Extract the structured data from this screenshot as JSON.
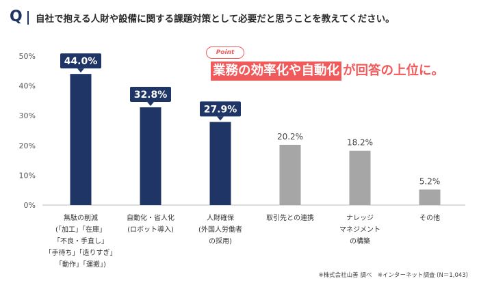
{
  "header": {
    "q_mark": "Q",
    "question": "自社で抱える人財や設備に関する課題対策として必要だと思うことを教えてください。"
  },
  "callout": {
    "badge": "Point",
    "highlight_text": "業務の効率化や自動化",
    "rest_text": "が回答の上位に。"
  },
  "source": "※株式会社山善 調べ　※インターネット調査 (N＝1,043)",
  "colors": {
    "dark_bar": "#1f3566",
    "gray_bar": "#a6a6a6",
    "accent": "#f05a5a"
  },
  "chart_data": {
    "type": "bar",
    "title": "",
    "ylim": [
      0,
      50
    ],
    "yticks": [
      "0%",
      "10%",
      "20%",
      "30%",
      "40%",
      "50%"
    ],
    "categories": [
      [
        "無駄の削減",
        "(「加工」「在庫」",
        "「不良・手直し」",
        "「手待ち」「造りすぎ」",
        "「動作」「運搬」)"
      ],
      [
        "自動化・省人化",
        "(ロボット導入)"
      ],
      [
        "人財確保",
        "(外国人労働者",
        "の採用)"
      ],
      [
        "取引先との連携"
      ],
      [
        "ナレッジ",
        "マネジメント",
        "の構築"
      ],
      [
        "その他"
      ]
    ],
    "values": [
      44.0,
      32.8,
      27.9,
      20.2,
      18.2,
      5.2
    ],
    "labels": [
      "44.0%",
      "32.8%",
      "27.9%",
      "20.2%",
      "18.2%",
      "5.2%"
    ],
    "highlighted": [
      true,
      true,
      true,
      false,
      false,
      false
    ]
  }
}
